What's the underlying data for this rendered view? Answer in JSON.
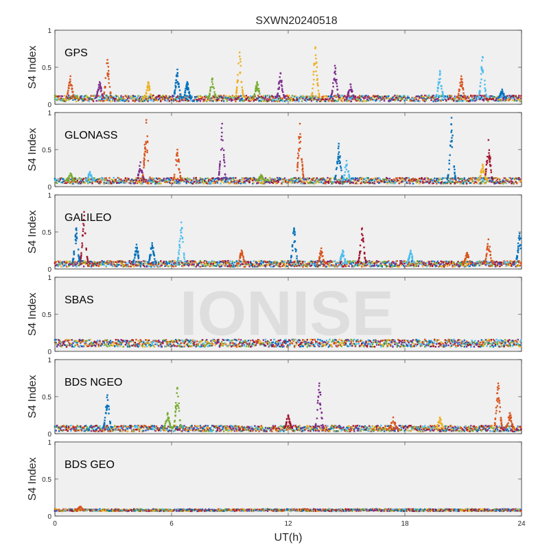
{
  "chart_data": {
    "type": "scatter",
    "title": "SXWN20240518",
    "xlabel": "UT(h)",
    "ylabel": "S4 Index",
    "xlim": [
      0,
      24
    ],
    "ylim": [
      0,
      1
    ],
    "xticks": [
      0,
      6,
      12,
      18,
      24
    ],
    "yticks": [
      0,
      0.5,
      1
    ],
    "grid": false,
    "watermark": "IONISE",
    "colors": [
      "#0072BD",
      "#D95319",
      "#EDB120",
      "#7E2F8E",
      "#77AC30",
      "#4DBEEE",
      "#A2142F"
    ],
    "panels": [
      {
        "label": "GPS",
        "baseline": 0.08,
        "noise": 0.04,
        "events": [
          {
            "t": 0.8,
            "peak": 0.38,
            "color": "#D95319"
          },
          {
            "t": 2.7,
            "peak": 0.6,
            "color": "#D95319"
          },
          {
            "t": 2.3,
            "peak": 0.3,
            "color": "#7E2F8E"
          },
          {
            "t": 4.8,
            "peak": 0.3,
            "color": "#EDB120"
          },
          {
            "t": 6.3,
            "peak": 0.47,
            "color": "#0072BD"
          },
          {
            "t": 6.8,
            "peak": 0.3,
            "color": "#0072BD"
          },
          {
            "t": 8.1,
            "peak": 0.35,
            "color": "#77AC30"
          },
          {
            "t": 9.5,
            "peak": 0.7,
            "color": "#EDB120"
          },
          {
            "t": 10.4,
            "peak": 0.3,
            "color": "#77AC30"
          },
          {
            "t": 11.6,
            "peak": 0.42,
            "color": "#7E2F8E"
          },
          {
            "t": 13.4,
            "peak": 0.77,
            "color": "#EDB120"
          },
          {
            "t": 14.4,
            "peak": 0.52,
            "color": "#7E2F8E"
          },
          {
            "t": 15.2,
            "peak": 0.27,
            "color": "#7E2F8E"
          },
          {
            "t": 19.8,
            "peak": 0.45,
            "color": "#4DBEEE"
          },
          {
            "t": 20.9,
            "peak": 0.38,
            "color": "#D95319"
          },
          {
            "t": 22.0,
            "peak": 0.64,
            "color": "#4DBEEE"
          },
          {
            "t": 23.0,
            "peak": 0.2,
            "color": "#0072BD"
          }
        ]
      },
      {
        "label": "GLONASS",
        "baseline": 0.08,
        "noise": 0.04,
        "events": [
          {
            "t": 0.8,
            "peak": 0.18,
            "color": "#77AC30"
          },
          {
            "t": 1.8,
            "peak": 0.2,
            "color": "#4DBEEE"
          },
          {
            "t": 4.7,
            "peak": 0.9,
            "color": "#D95319"
          },
          {
            "t": 4.4,
            "peak": 0.33,
            "color": "#7E2F8E"
          },
          {
            "t": 6.3,
            "peak": 0.5,
            "color": "#D95319"
          },
          {
            "t": 8.6,
            "peak": 0.85,
            "color": "#7E2F8E"
          },
          {
            "t": 10.6,
            "peak": 0.16,
            "color": "#77AC30"
          },
          {
            "t": 12.6,
            "peak": 0.85,
            "color": "#D95319"
          },
          {
            "t": 14.6,
            "peak": 0.58,
            "color": "#0072BD"
          },
          {
            "t": 15.0,
            "peak": 0.35,
            "color": "#4DBEEE"
          },
          {
            "t": 20.4,
            "peak": 0.93,
            "color": "#0072BD"
          },
          {
            "t": 22.3,
            "peak": 0.63,
            "color": "#A2142F"
          },
          {
            "t": 22.0,
            "peak": 0.3,
            "color": "#EDB120"
          }
        ]
      },
      {
        "label": "GALILEO",
        "baseline": 0.07,
        "noise": 0.04,
        "events": [
          {
            "t": 1.5,
            "peak": 0.77,
            "color": "#A2142F"
          },
          {
            "t": 1.1,
            "peak": 0.55,
            "color": "#0072BD"
          },
          {
            "t": 4.2,
            "peak": 0.33,
            "color": "#0072BD"
          },
          {
            "t": 5.0,
            "peak": 0.35,
            "color": "#0072BD"
          },
          {
            "t": 6.5,
            "peak": 0.63,
            "color": "#4DBEEE"
          },
          {
            "t": 9.6,
            "peak": 0.25,
            "color": "#D95319"
          },
          {
            "t": 12.3,
            "peak": 0.55,
            "color": "#0072BD"
          },
          {
            "t": 13.7,
            "peak": 0.28,
            "color": "#D95319"
          },
          {
            "t": 14.8,
            "peak": 0.25,
            "color": "#4DBEEE"
          },
          {
            "t": 15.8,
            "peak": 0.55,
            "color": "#A2142F"
          },
          {
            "t": 18.3,
            "peak": 0.25,
            "color": "#4DBEEE"
          },
          {
            "t": 21.2,
            "peak": 0.22,
            "color": "#D95319"
          },
          {
            "t": 22.3,
            "peak": 0.4,
            "color": "#D95319"
          },
          {
            "t": 23.9,
            "peak": 0.48,
            "color": "#0072BD"
          }
        ]
      },
      {
        "label": "SBAS",
        "baseline": 0.11,
        "noise": 0.05,
        "events": []
      },
      {
        "label": "BDS NGEO",
        "baseline": 0.07,
        "noise": 0.04,
        "events": [
          {
            "t": 2.7,
            "peak": 0.52,
            "color": "#0072BD"
          },
          {
            "t": 5.8,
            "peak": 0.28,
            "color": "#77AC30"
          },
          {
            "t": 6.3,
            "peak": 0.62,
            "color": "#77AC30"
          },
          {
            "t": 12.0,
            "peak": 0.25,
            "color": "#A2142F"
          },
          {
            "t": 13.6,
            "peak": 0.68,
            "color": "#7E2F8E"
          },
          {
            "t": 17.4,
            "peak": 0.22,
            "color": "#D95319"
          },
          {
            "t": 19.8,
            "peak": 0.22,
            "color": "#EDB120"
          },
          {
            "t": 22.8,
            "peak": 0.68,
            "color": "#D95319"
          },
          {
            "t": 23.4,
            "peak": 0.28,
            "color": "#D95319"
          }
        ]
      },
      {
        "label": "BDS GEO",
        "baseline": 0.08,
        "noise": 0.015,
        "events": [
          {
            "t": 1.3,
            "peak": 0.13,
            "color": "#D95319"
          }
        ]
      }
    ]
  }
}
